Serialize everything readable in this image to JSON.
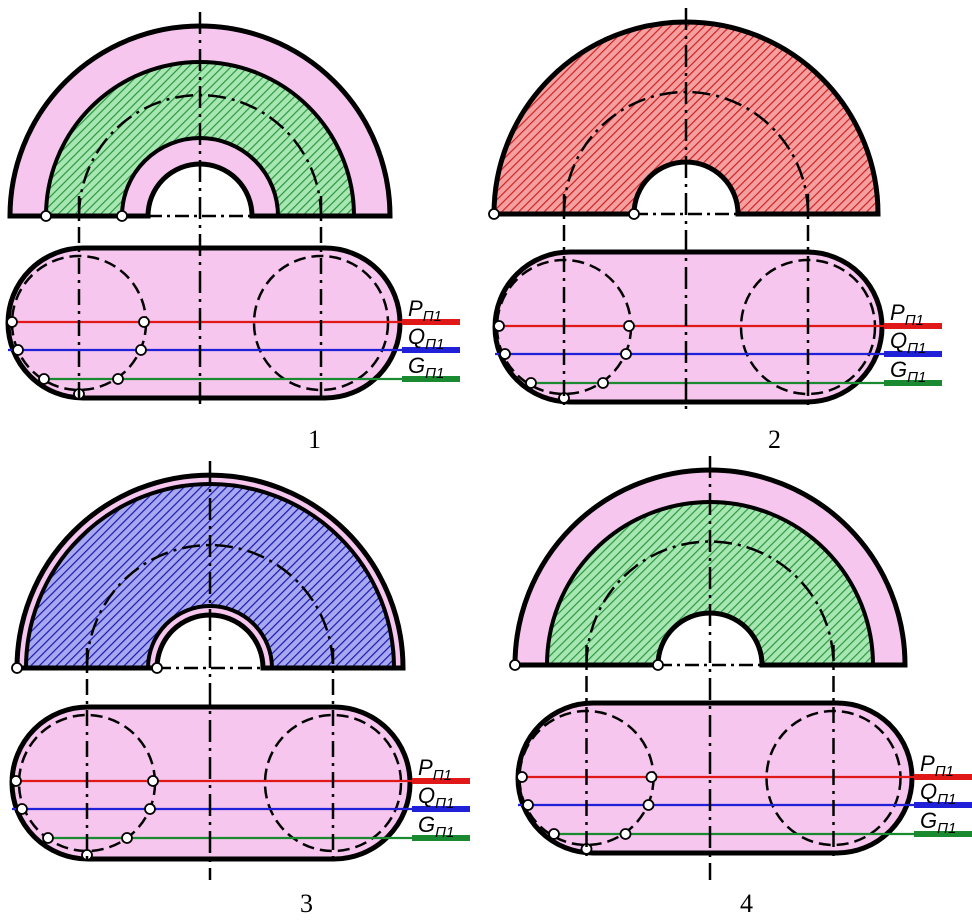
{
  "figures": [
    {
      "number": "1",
      "section": "mid-band",
      "fill_color": "#a8e6b4",
      "hatch_color": "#2a9a3c",
      "planes": [
        {
          "name": "P",
          "subscript": "П1",
          "color": "#e01818"
        },
        {
          "name": "Q",
          "subscript": "П1",
          "color": "#2020d8"
        },
        {
          "name": "G",
          "subscript": "П1",
          "color": "#1a8a30"
        }
      ]
    },
    {
      "number": "2",
      "section": "full",
      "fill_color": "#f4a0a0",
      "hatch_color": "#d02020",
      "planes": [
        {
          "name": "P",
          "subscript": "П1",
          "color": "#e01818"
        },
        {
          "name": "Q",
          "subscript": "П1",
          "color": "#2020d8"
        },
        {
          "name": "G",
          "subscript": "П1",
          "color": "#1a8a30"
        }
      ]
    },
    {
      "number": "3",
      "section": "thin-edges",
      "fill_color": "#a8a8f0",
      "hatch_color": "#1818b0",
      "planes": [
        {
          "name": "P",
          "subscript": "П1",
          "color": "#e01818"
        },
        {
          "name": "Q",
          "subscript": "П1",
          "color": "#2020d8"
        },
        {
          "name": "G",
          "subscript": "П1",
          "color": "#1a8a30"
        }
      ]
    },
    {
      "number": "4",
      "section": "outer-band",
      "fill_color": "#a8e6b4",
      "hatch_color": "#2a9a3c",
      "planes": [
        {
          "name": "P",
          "subscript": "П1",
          "color": "#e01818"
        },
        {
          "name": "Q",
          "subscript": "П1",
          "color": "#2020d8"
        },
        {
          "name": "G",
          "subscript": "П1",
          "color": "#1a8a30"
        }
      ]
    }
  ],
  "colors": {
    "body_fill": "#f6c6ee",
    "outline": "#000000",
    "point_fill": "#ffffff"
  }
}
